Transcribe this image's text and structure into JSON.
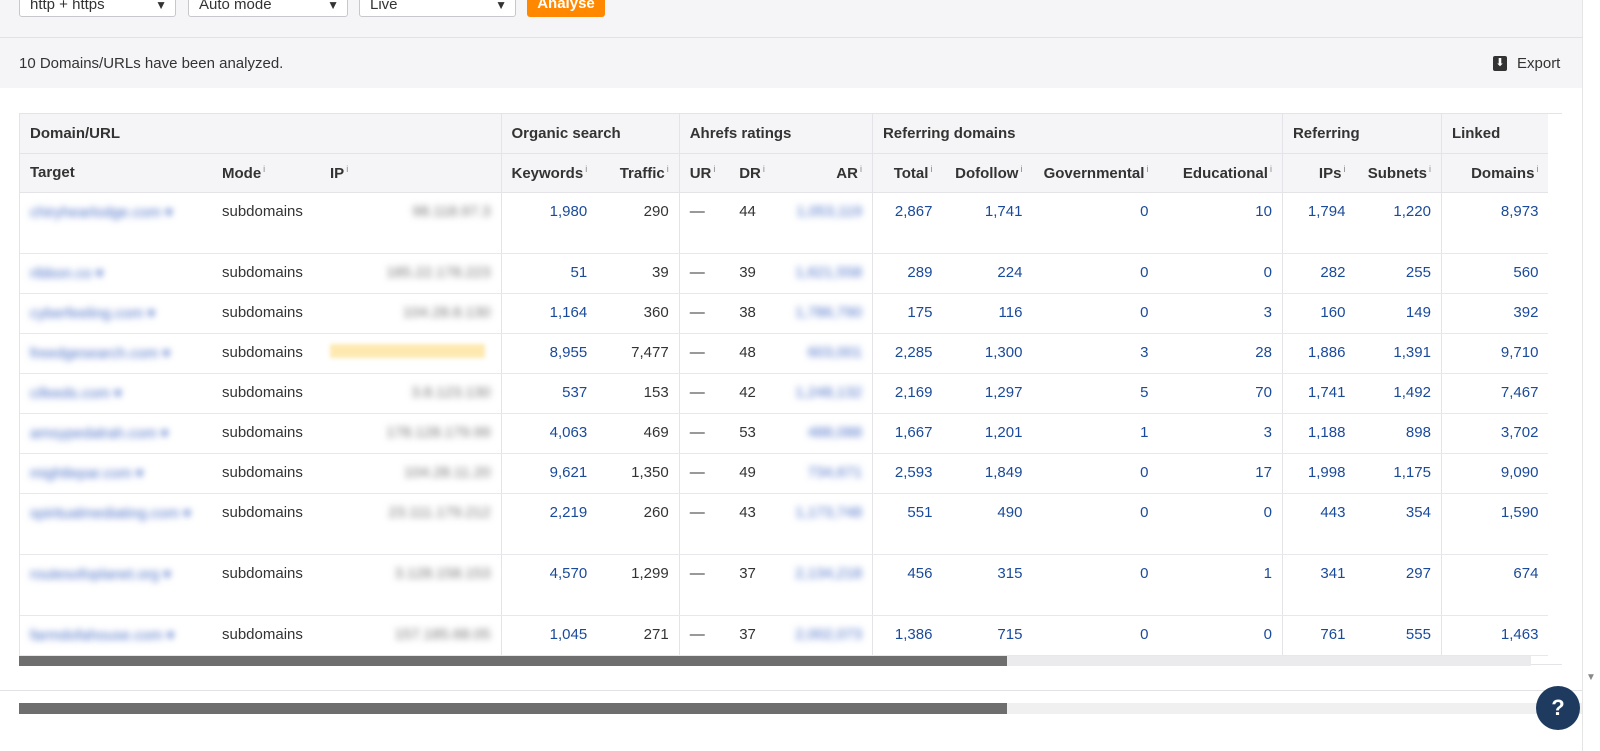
{
  "controls": {
    "protocol": "http + https",
    "mode": "Auto mode",
    "index": "Live",
    "analyse_label": "Analyse"
  },
  "info": {
    "message": "10 Domains/URLs have been analyzed.",
    "export_label": "Export"
  },
  "table": {
    "groups": [
      "Domain/URL",
      "Organic search",
      "Ahrefs ratings",
      "Referring domains",
      "Referring",
      "Linked"
    ],
    "columns": [
      "Target",
      "Mode",
      "IP",
      "Keywords",
      "Traffic",
      "UR",
      "DR",
      "AR",
      "Total",
      "Dofollow",
      "Governmental",
      "Educational",
      "IPs",
      "Subnets",
      "Domains"
    ],
    "info_mark": "i",
    "rows": [
      {
        "target": "chiryhearlodge.com ▾",
        "mode": "subdomains",
        "ip": "98.118.97.3",
        "keywords": "1,980",
        "traffic": "290",
        "ur": "—",
        "dr": "44",
        "ar": "1,053,119",
        "total": "2,867",
        "dofollow": "1,741",
        "gov": "0",
        "edu": "10",
        "ips": "1,794",
        "subnets": "1,220",
        "domains": "8,973"
      },
      {
        "target": "ribbon.co ▾",
        "mode": "subdomains",
        "ip": "185.22.178.223",
        "keywords": "51",
        "traffic": "39",
        "ur": "—",
        "dr": "39",
        "ar": "1,621,558",
        "total": "289",
        "dofollow": "224",
        "gov": "0",
        "edu": "0",
        "ips": "282",
        "subnets": "255",
        "domains": "560"
      },
      {
        "target": "cyberfeeling.com ▾",
        "mode": "subdomains",
        "ip": "104.28.8.130",
        "keywords": "1,164",
        "traffic": "360",
        "ur": "—",
        "dr": "38",
        "ar": "1,786,790",
        "total": "175",
        "dofollow": "116",
        "gov": "0",
        "edu": "3",
        "ips": "160",
        "subnets": "149",
        "domains": "392"
      },
      {
        "target": "freedgesearch.com ▾",
        "mode": "subdomains",
        "ip": "",
        "keywords": "8,955",
        "traffic": "7,477",
        "ur": "—",
        "dr": "48",
        "ar": "603,001",
        "total": "2,285",
        "dofollow": "1,300",
        "gov": "3",
        "edu": "28",
        "ips": "1,886",
        "subnets": "1,391",
        "domains": "9,710"
      },
      {
        "target": "cifeeds.com ▾",
        "mode": "subdomains",
        "ip": "3.8.123.130",
        "keywords": "537",
        "traffic": "153",
        "ur": "—",
        "dr": "42",
        "ar": "1,248,132",
        "total": "2,169",
        "dofollow": "1,297",
        "gov": "5",
        "edu": "70",
        "ips": "1,741",
        "subnets": "1,492",
        "domains": "7,467"
      },
      {
        "target": "amsypedalrah.com ▾",
        "mode": "subdomains",
        "ip": "178.128.179.99",
        "keywords": "4,063",
        "traffic": "469",
        "ur": "—",
        "dr": "53",
        "ar": "488,088",
        "total": "1,667",
        "dofollow": "1,201",
        "gov": "1",
        "edu": "3",
        "ips": "1,188",
        "subnets": "898",
        "domains": "3,702"
      },
      {
        "target": "mightlepar.com ▾",
        "mode": "subdomains",
        "ip": "104.28.11.20",
        "keywords": "9,621",
        "traffic": "1,350",
        "ur": "—",
        "dr": "49",
        "ar": "734,671",
        "total": "2,593",
        "dofollow": "1,849",
        "gov": "0",
        "edu": "17",
        "ips": "1,998",
        "subnets": "1,175",
        "domains": "9,090"
      },
      {
        "target": "spiritualmediating.com ▾",
        "mode": "subdomains",
        "ip": "23.111.179.212",
        "keywords": "2,219",
        "traffic": "260",
        "ur": "—",
        "dr": "43",
        "ar": "1,173,748",
        "total": "551",
        "dofollow": "490",
        "gov": "0",
        "edu": "0",
        "ips": "443",
        "subnets": "354",
        "domains": "1,590"
      },
      {
        "target": "routesofoplanet.org ▾",
        "mode": "subdomains",
        "ip": "3.128.158.153",
        "keywords": "4,570",
        "traffic": "1,299",
        "ur": "—",
        "dr": "37",
        "ar": "2,134,218",
        "total": "456",
        "dofollow": "315",
        "gov": "0",
        "edu": "1",
        "ips": "341",
        "subnets": "297",
        "domains": "674"
      },
      {
        "target": "farmdofahouse.com ▾",
        "mode": "subdomains",
        "ip": "157.185.68.05",
        "keywords": "1,045",
        "traffic": "271",
        "ur": "—",
        "dr": "37",
        "ar": "2,002,073",
        "total": "1,386",
        "dofollow": "715",
        "gov": "0",
        "edu": "0",
        "ips": "761",
        "subnets": "555",
        "domains": "1,463"
      }
    ]
  },
  "help_label": "?"
}
